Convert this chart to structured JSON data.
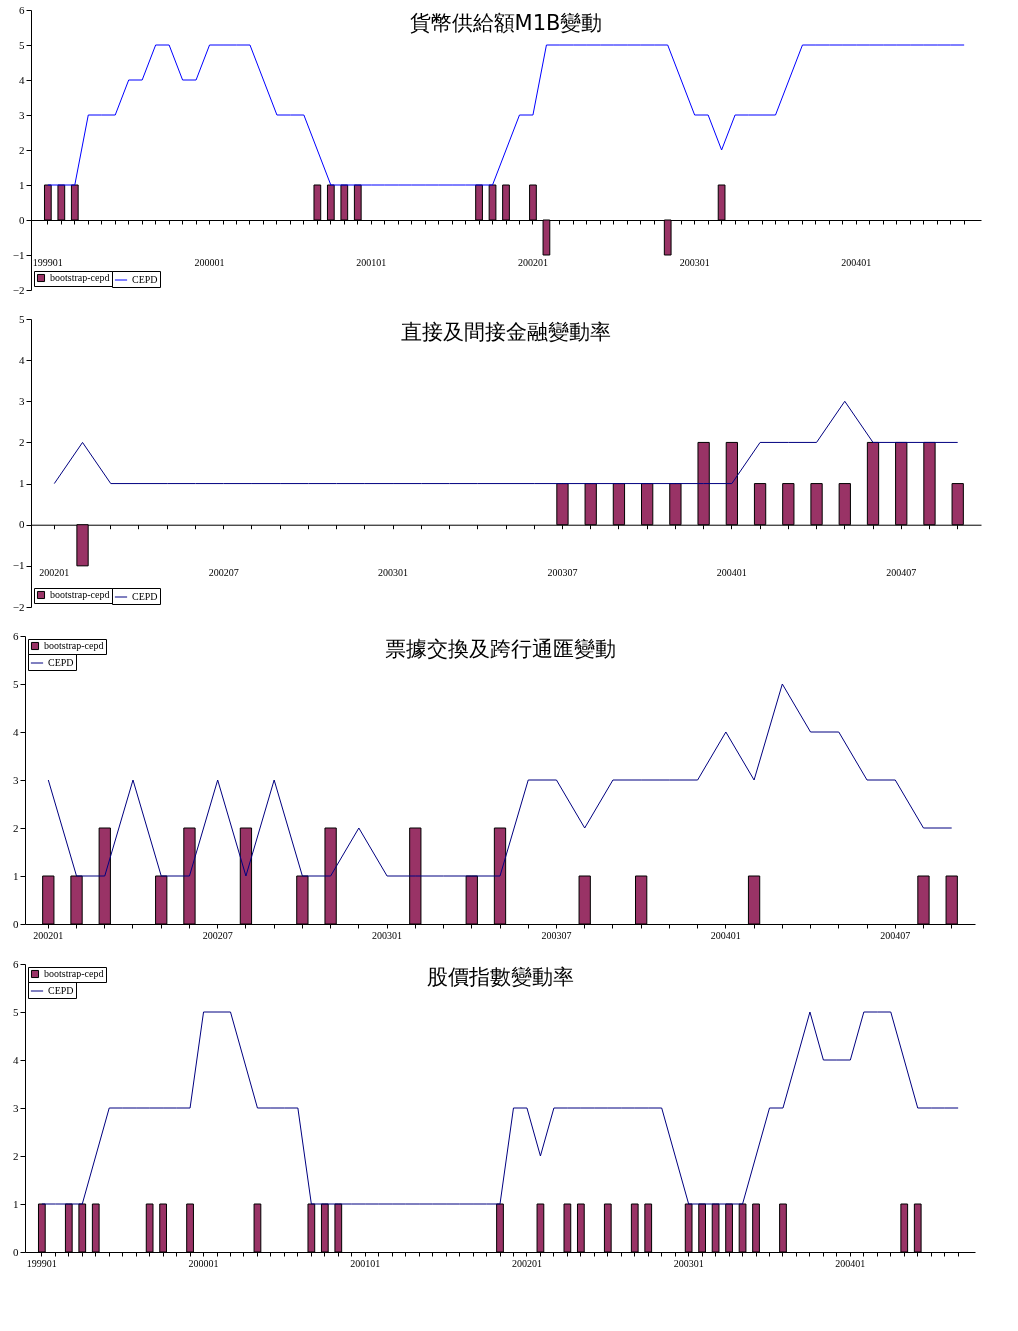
{
  "chart_data": [
    {
      "type": "bar",
      "title": "貨幣供給額M1B變動",
      "legend": "bottom left",
      "ylim": [
        -2,
        6
      ],
      "yticks": [
        -2,
        -1,
        0,
        1,
        2,
        3,
        4,
        5,
        6
      ],
      "categories": [
        "199901",
        null,
        null,
        null,
        null,
        null,
        null,
        null,
        null,
        null,
        null,
        null,
        "200001",
        null,
        null,
        null,
        null,
        null,
        null,
        null,
        null,
        null,
        null,
        null,
        "200101",
        null,
        null,
        null,
        null,
        null,
        null,
        null,
        null,
        null,
        null,
        null,
        "200201",
        null,
        null,
        null,
        null,
        null,
        null,
        null,
        null,
        null,
        null,
        null,
        "200301",
        null,
        null,
        null,
        null,
        null,
        null,
        null,
        null,
        null,
        null,
        null,
        "200401",
        null,
        null,
        null,
        null,
        null,
        null,
        null,
        null
      ],
      "series": [
        {
          "name": "bootstrap-cepd",
          "color": "#993366",
          "values": [
            1,
            1,
            1,
            null,
            null,
            null,
            null,
            null,
            null,
            null,
            null,
            null,
            null,
            null,
            null,
            null,
            null,
            null,
            null,
            null,
            1,
            1,
            1,
            1,
            null,
            null,
            null,
            null,
            null,
            null,
            null,
            null,
            1,
            1,
            1,
            null,
            1,
            -1,
            null,
            null,
            null,
            null,
            null,
            null,
            null,
            null,
            -1,
            null,
            null,
            null,
            1,
            null,
            null,
            null,
            null,
            null,
            null,
            null,
            null,
            null,
            null,
            null,
            null,
            null,
            null,
            null,
            null,
            null,
            null
          ]
        },
        {
          "type": "line",
          "name": "CEPD",
          "color": "#0000ff",
          "values": [
            1,
            1,
            1,
            3,
            3,
            3,
            4,
            4,
            5,
            5,
            4,
            4,
            5,
            5,
            5,
            5,
            4,
            3,
            3,
            3,
            2,
            1,
            1,
            1,
            1,
            1,
            1,
            1,
            1,
            1,
            1,
            1,
            1,
            1,
            2,
            3,
            3,
            5,
            5,
            5,
            5,
            5,
            5,
            5,
            5,
            5,
            5,
            4,
            3,
            3,
            2,
            3,
            3,
            3,
            3,
            4,
            5,
            5,
            5,
            5,
            5,
            5,
            5,
            5,
            5,
            5,
            5,
            5,
            5
          ]
        }
      ]
    },
    {
      "type": "bar",
      "title": "直接及間接金融變動率",
      "legend": "bottom left",
      "ylim": [
        -2,
        5
      ],
      "yticks": [
        -2,
        -1,
        0,
        1,
        2,
        3,
        4,
        5
      ],
      "categories": [
        "200201",
        null,
        null,
        null,
        null,
        null,
        "200207",
        null,
        null,
        null,
        null,
        null,
        "200301",
        null,
        null,
        null,
        null,
        null,
        "200307",
        null,
        null,
        null,
        null,
        null,
        "200401",
        null,
        null,
        null,
        null,
        null,
        "200407",
        null,
        null
      ],
      "series": [
        {
          "name": "bootstrap-cepd",
          "color": "#993366",
          "values": [
            null,
            -1,
            null,
            null,
            null,
            null,
            null,
            null,
            null,
            null,
            null,
            null,
            null,
            null,
            null,
            null,
            null,
            null,
            1,
            1,
            1,
            1,
            1,
            2,
            2,
            1,
            1,
            1,
            1,
            2,
            2,
            2,
            1
          ]
        },
        {
          "type": "line",
          "name": "CEPD",
          "color": "#000080",
          "values": [
            1,
            2,
            1,
            1,
            1,
            1,
            1,
            1,
            1,
            1,
            1,
            1,
            1,
            1,
            1,
            1,
            1,
            1,
            1,
            1,
            1,
            1,
            1,
            1,
            1,
            2,
            2,
            2,
            3,
            2,
            2,
            2,
            2
          ]
        }
      ]
    },
    {
      "type": "bar",
      "title": "票據交換及跨行通匯變動",
      "legend": "top left",
      "ylim": [
        0,
        6
      ],
      "yticks": [
        0,
        1,
        2,
        3,
        4,
        5,
        6
      ],
      "categories": [
        "200201",
        null,
        null,
        null,
        null,
        null,
        "200207",
        null,
        null,
        null,
        null,
        null,
        "200301",
        null,
        null,
        null,
        null,
        null,
        "200307",
        null,
        null,
        null,
        null,
        null,
        "200401",
        null,
        null,
        null,
        null,
        null,
        "200407",
        null,
        null
      ],
      "series": [
        {
          "name": "bootstrap-cepd",
          "color": "#993366",
          "values": [
            1,
            1,
            2,
            null,
            1,
            2,
            null,
            2,
            null,
            1,
            2,
            null,
            null,
            2,
            null,
            1,
            2,
            null,
            null,
            1,
            null,
            1,
            null,
            null,
            null,
            1,
            null,
            null,
            null,
            null,
            null,
            1,
            1
          ]
        },
        {
          "type": "line",
          "name": "CEPD",
          "color": "#000080",
          "values": [
            3,
            1,
            1,
            3,
            1,
            1,
            3,
            1,
            3,
            1,
            1,
            2,
            1,
            1,
            1,
            1,
            1,
            3,
            3,
            2,
            3,
            3,
            3,
            3,
            4,
            3,
            5,
            4,
            4,
            3,
            3,
            2,
            2
          ]
        }
      ]
    },
    {
      "type": "bar",
      "title": "股價指數變動率",
      "legend": "top left",
      "ylim": [
        0,
        6
      ],
      "yticks": [
        0,
        1,
        2,
        3,
        4,
        5,
        6
      ],
      "categories": [
        "199901",
        null,
        null,
        null,
        null,
        null,
        null,
        null,
        null,
        null,
        null,
        null,
        "200001",
        null,
        null,
        null,
        null,
        null,
        null,
        null,
        null,
        null,
        null,
        null,
        "200101",
        null,
        null,
        null,
        null,
        null,
        null,
        null,
        null,
        null,
        null,
        null,
        "200201",
        null,
        null,
        null,
        null,
        null,
        null,
        null,
        null,
        null,
        null,
        null,
        "200301",
        null,
        null,
        null,
        null,
        null,
        null,
        null,
        null,
        null,
        null,
        null,
        "200401",
        null,
        null,
        null,
        null,
        null,
        null,
        null,
        null
      ],
      "series": [
        {
          "name": "bootstrap-cepd",
          "color": "#993366",
          "values": [
            1,
            null,
            1,
            1,
            1,
            null,
            null,
            null,
            1,
            1,
            null,
            1,
            null,
            null,
            null,
            null,
            1,
            null,
            null,
            null,
            1,
            1,
            1,
            null,
            null,
            null,
            null,
            null,
            null,
            null,
            null,
            null,
            null,
            null,
            1,
            null,
            null,
            1,
            null,
            1,
            1,
            null,
            1,
            null,
            1,
            1,
            null,
            null,
            1,
            1,
            1,
            1,
            1,
            1,
            null,
            1,
            null,
            null,
            null,
            null,
            null,
            null,
            null,
            null,
            1,
            1,
            null,
            null,
            null
          ]
        },
        {
          "type": "line",
          "name": "CEPD",
          "color": "#000080",
          "values": [
            1,
            1,
            1,
            1,
            2,
            3,
            3,
            3,
            3,
            3,
            3,
            3,
            5,
            5,
            5,
            4,
            3,
            3,
            3,
            3,
            1,
            1,
            1,
            1,
            1,
            1,
            1,
            1,
            1,
            1,
            1,
            1,
            1,
            1,
            1,
            3,
            3,
            2,
            3,
            3,
            3,
            3,
            3,
            3,
            3,
            3,
            3,
            2,
            1,
            1,
            1,
            1,
            1,
            2,
            3,
            3,
            4,
            5,
            4,
            4,
            4,
            5,
            5,
            5,
            4,
            3,
            3,
            3,
            3
          ]
        }
      ]
    }
  ]
}
